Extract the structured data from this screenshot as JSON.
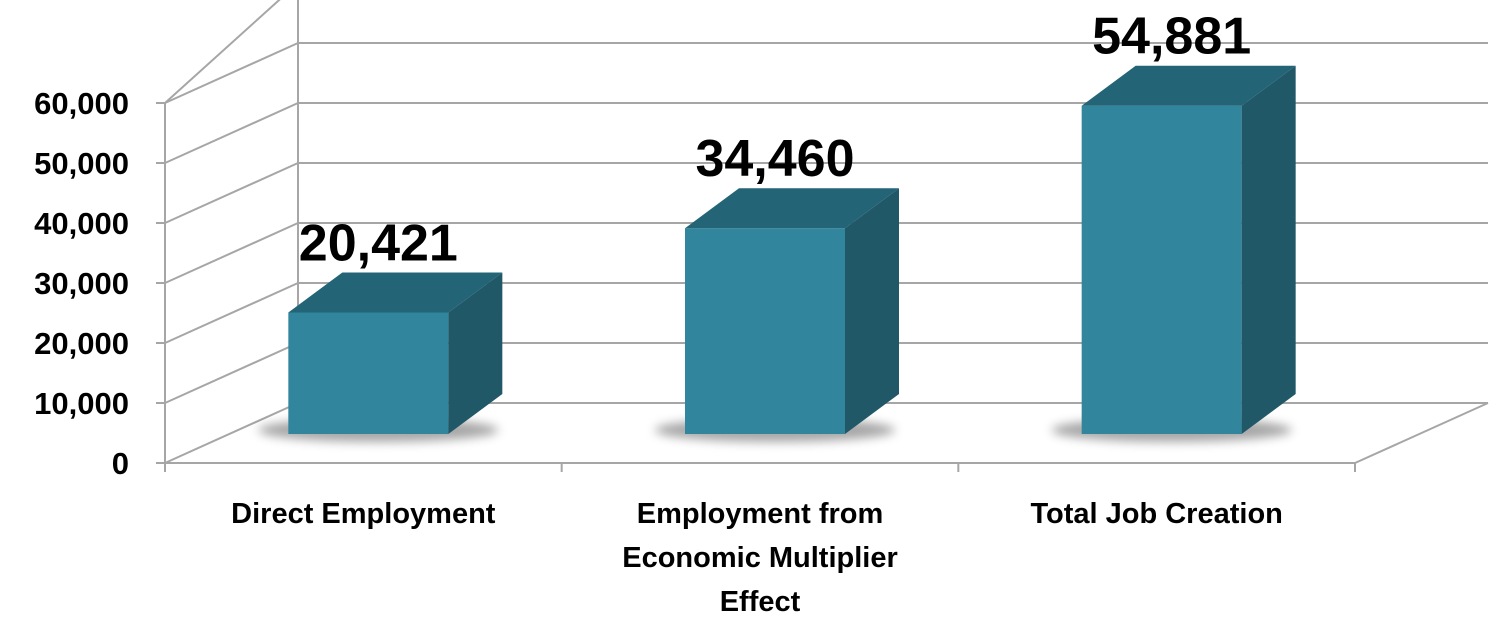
{
  "chart_data": {
    "type": "bar",
    "categories": [
      "Direct Employment",
      "Employment from Economic Multiplier Effect",
      "Total Job Creation"
    ],
    "category_label_lines": [
      [
        "Direct Employment"
      ],
      [
        "Employment from",
        "Economic Multiplier",
        "Effect"
      ],
      [
        "Total Job Creation"
      ]
    ],
    "values": [
      20421,
      34460,
      54881
    ],
    "data_labels": [
      "20,421",
      "34,460",
      "54,881"
    ],
    "ylim": [
      0,
      60000
    ],
    "y_ticks": [
      {
        "value": 0,
        "label": "0"
      },
      {
        "value": 10000,
        "label": "10,000"
      },
      {
        "value": 20000,
        "label": "20,000"
      },
      {
        "value": 30000,
        "label": "30,000"
      },
      {
        "value": 40000,
        "label": "40,000"
      },
      {
        "value": 50000,
        "label": "50,000"
      },
      {
        "value": 60000,
        "label": "60,000"
      }
    ],
    "grid": true,
    "style": "3d-column",
    "colors": {
      "bar_front": "#31859C",
      "bar_top": "#236476",
      "bar_side": "#215868",
      "gridline": "#a6a6a6"
    }
  }
}
